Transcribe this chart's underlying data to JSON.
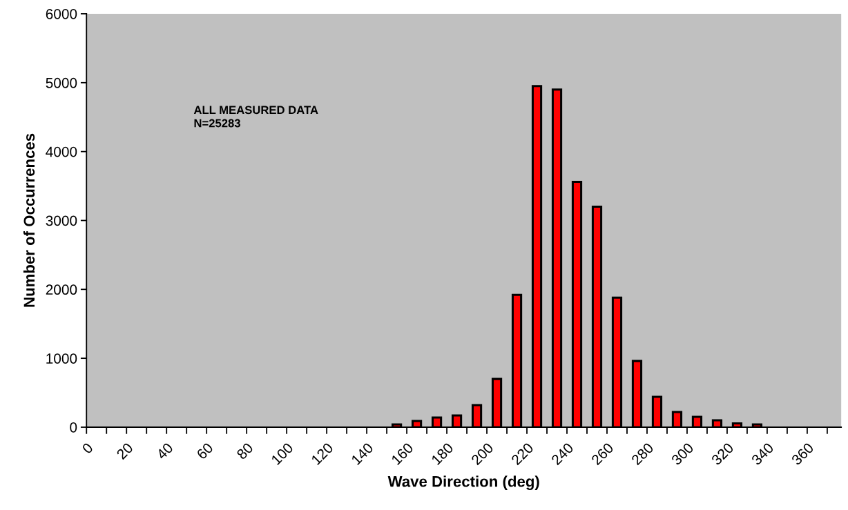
{
  "chart_data": {
    "type": "histogram",
    "xlabel": "Wave Direction (deg)",
    "ylabel": "Number of Occurrences",
    "annotations": [
      "ALL MEASURED DATA\nN=25283"
    ],
    "bins": [
      150,
      160,
      170,
      180,
      190,
      200,
      210,
      220,
      230,
      240,
      250,
      260,
      270,
      280,
      290,
      300,
      310,
      320,
      330,
      340
    ],
    "values": [
      40,
      90,
      140,
      170,
      320,
      700,
      1920,
      4950,
      4900,
      3560,
      3200,
      1880,
      960,
      440,
      220,
      150,
      100,
      55,
      40
    ],
    "color": "#ff0000",
    "xlim": [
      0,
      377
    ],
    "xticks": [
      0,
      {
        "value": 10,
        "label": null
      },
      20,
      {
        "value": 30,
        "label": null
      },
      40,
      {
        "value": 50,
        "label": null
      },
      60,
      {
        "value": 70,
        "label": null
      },
      80,
      {
        "value": 90,
        "label": null
      },
      100,
      {
        "value": 110,
        "label": null
      },
      120,
      {
        "value": 130,
        "label": null
      },
      140,
      {
        "value": 150,
        "label": null
      },
      160,
      {
        "value": 170,
        "label": null
      },
      180,
      {
        "value": 190,
        "label": null
      },
      200,
      {
        "value": 210,
        "label": null
      },
      220,
      {
        "value": 230,
        "label": null
      },
      240,
      {
        "value": 250,
        "label": null
      },
      260,
      {
        "value": 270,
        "label": null
      },
      280,
      {
        "value": 290,
        "label": null
      },
      300,
      {
        "value": 310,
        "label": null
      },
      320,
      {
        "value": 330,
        "label": null
      },
      340,
      {
        "value": 350,
        "label": null
      },
      360,
      {
        "value": 370,
        "label": null
      }
    ],
    "ylim": [
      0,
      6000
    ],
    "yticks": [
      0,
      1000,
      2000,
      3000,
      4000,
      5000,
      6000
    ],
    "grid": false,
    "legend": false
  }
}
